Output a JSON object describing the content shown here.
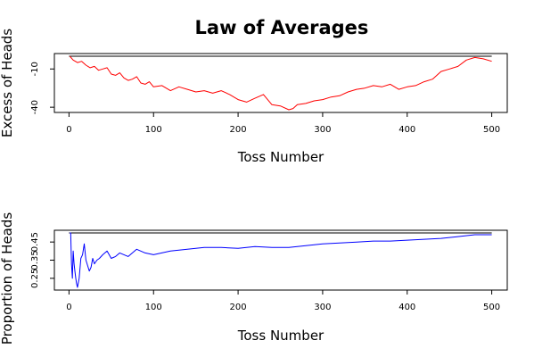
{
  "chart_data": [
    {
      "type": "line",
      "title": "Law of Averages",
      "xlabel": "Toss Number",
      "ylabel": "Excess of Heads",
      "xlim": [
        0,
        500
      ],
      "ylim": [
        -42,
        0
      ],
      "xticks": [
        0,
        100,
        200,
        300,
        400,
        500
      ],
      "yticks": [
        -40,
        -10
      ],
      "reference_line": 0,
      "series": [
        {
          "color": "#ff0000",
          "x": [
            1,
            5,
            10,
            15,
            20,
            25,
            30,
            35,
            40,
            45,
            50,
            55,
            60,
            65,
            70,
            75,
            80,
            85,
            90,
            95,
            100,
            110,
            120,
            130,
            140,
            150,
            160,
            170,
            180,
            190,
            200,
            210,
            220,
            230,
            240,
            250,
            260,
            265,
            270,
            280,
            290,
            300,
            310,
            320,
            330,
            340,
            350,
            360,
            370,
            380,
            390,
            400,
            410,
            420,
            430,
            440,
            450,
            460,
            470,
            480,
            490,
            500
          ],
          "y": [
            0,
            -3,
            -5,
            -4,
            -7,
            -9,
            -8,
            -11,
            -10,
            -9,
            -14,
            -15,
            -13,
            -17,
            -19,
            -18,
            -16,
            -21,
            -22,
            -20,
            -24,
            -23,
            -27,
            -24,
            -26,
            -28,
            -27,
            -29,
            -27,
            -30,
            -34,
            -36,
            -33,
            -30,
            -38,
            -39,
            -42,
            -41,
            -38,
            -37,
            -35,
            -34,
            -32,
            -31,
            -28,
            -26,
            -25,
            -23,
            -24,
            -22,
            -26,
            -24,
            -23,
            -20,
            -18,
            -12,
            -10,
            -8,
            -3,
            -1,
            -2,
            -4
          ]
        }
      ]
    },
    {
      "type": "line",
      "xlabel": "Toss Number",
      "ylabel": "Proportion of Heads",
      "xlim": [
        0,
        500
      ],
      "ylim": [
        0.2,
        0.5
      ],
      "xticks": [
        0,
        100,
        200,
        300,
        400,
        500
      ],
      "yticks": [
        0.25,
        0.35,
        0.45
      ],
      "reference_line": 0.5,
      "series": [
        {
          "color": "#0000ff",
          "x": [
            1,
            2,
            3,
            4,
            5,
            6,
            7,
            8,
            9,
            10,
            12,
            14,
            16,
            18,
            20,
            22,
            24,
            26,
            28,
            30,
            33,
            36,
            40,
            45,
            50,
            55,
            60,
            70,
            80,
            90,
            100,
            120,
            140,
            160,
            180,
            200,
            220,
            240,
            260,
            280,
            300,
            320,
            340,
            360,
            380,
            400,
            420,
            440,
            460,
            480,
            500
          ],
          "y": [
            0.5,
            0.5,
            0.33,
            0.25,
            0.4,
            0.33,
            0.29,
            0.25,
            0.22,
            0.2,
            0.25,
            0.36,
            0.38,
            0.44,
            0.35,
            0.32,
            0.29,
            0.31,
            0.36,
            0.33,
            0.35,
            0.36,
            0.38,
            0.4,
            0.36,
            0.37,
            0.39,
            0.37,
            0.41,
            0.39,
            0.38,
            0.4,
            0.41,
            0.42,
            0.42,
            0.415,
            0.425,
            0.42,
            0.42,
            0.43,
            0.44,
            0.445,
            0.45,
            0.455,
            0.455,
            0.46,
            0.465,
            0.47,
            0.48,
            0.49,
            0.49
          ]
        }
      ]
    }
  ]
}
